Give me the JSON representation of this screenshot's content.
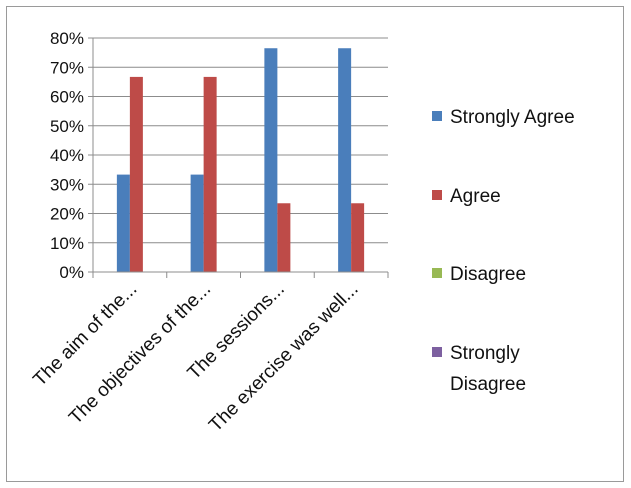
{
  "chart_data": {
    "type": "bar",
    "categories": [
      "The aim of the...",
      "The objectives of the...",
      "The sessions...",
      "The exercise was well..."
    ],
    "series": [
      {
        "name": "Strongly Agree",
        "color": "#4a7ebb",
        "values": [
          33.3,
          33.3,
          76.5,
          76.5
        ]
      },
      {
        "name": "Agree",
        "color": "#be4b48",
        "values": [
          66.7,
          66.7,
          23.5,
          23.5
        ]
      },
      {
        "name": "Disagree",
        "color": "#98b954",
        "values": [
          0,
          0,
          0,
          0
        ]
      },
      {
        "name": "Strongly Disagree",
        "color": "#7d60a0",
        "values": [
          0,
          0,
          0,
          0
        ]
      }
    ],
    "yticks": [
      "0%",
      "10%",
      "20%",
      "30%",
      "40%",
      "50%",
      "60%",
      "70%",
      "80%"
    ],
    "ylim": [
      0,
      80
    ],
    "grid": true,
    "legend_position": "right",
    "title": "",
    "xlabel": "",
    "ylabel": ""
  }
}
